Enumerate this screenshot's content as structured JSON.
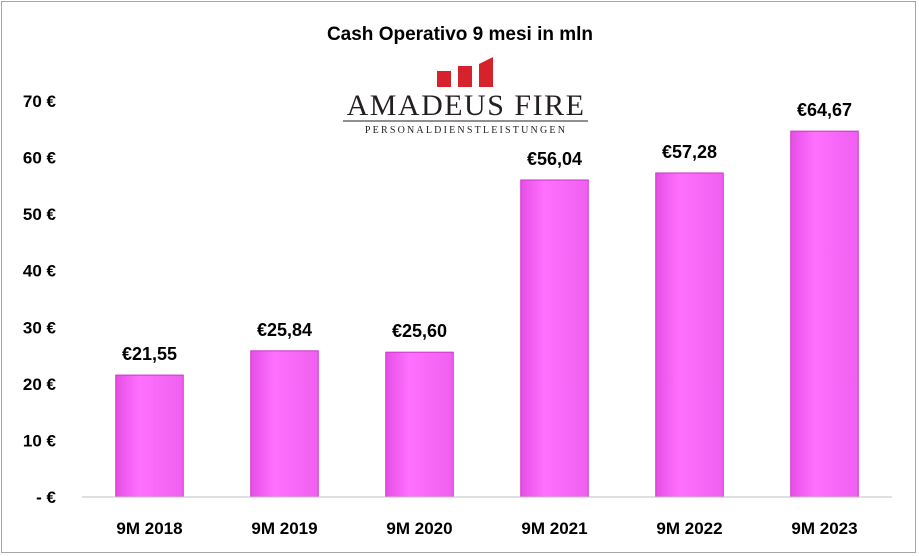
{
  "chart_data": {
    "type": "bar",
    "title": "Cash Operativo 9 mesi in mln",
    "categories": [
      "9M 2018",
      "9M 2019",
      "9M 2020",
      "9M 2021",
      "9M 2022",
      "9M 2023"
    ],
    "values": [
      21.55,
      25.84,
      25.6,
      56.04,
      57.28,
      64.67
    ],
    "data_labels": [
      "€21,55",
      "€25,84",
      "€25,60",
      "€56,04",
      "€57,28",
      "€64,67"
    ],
    "yticks": [
      "- €",
      "10 €",
      "20 €",
      "30 €",
      "40 €",
      "50 €",
      "60 €",
      "70 €"
    ],
    "ylim": [
      0,
      70
    ],
    "xlabel": "",
    "ylabel": "",
    "grid": false,
    "legend": "none",
    "bar_color": "#ff66ff",
    "bar_edge_color": "#cc33cc"
  },
  "logo": {
    "name": "AMADEUS FIRE",
    "tagline": "PERSONALDIENSTLEISTUNGEN",
    "mark_color": "#d6222b",
    "text_color": "#231f20"
  }
}
